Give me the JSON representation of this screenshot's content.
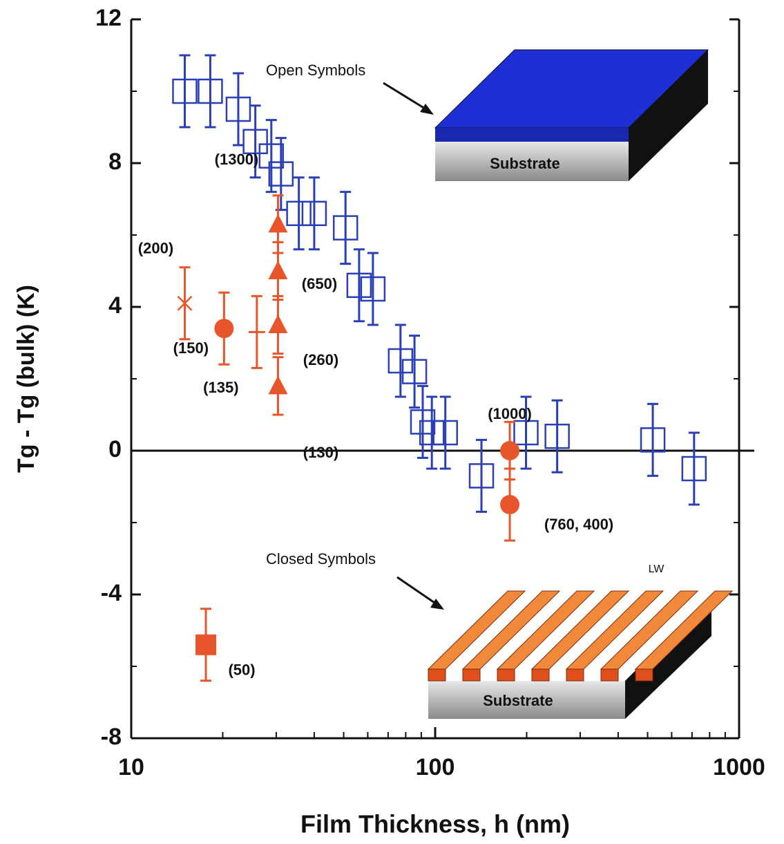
{
  "chart_data": {
    "type": "scatter",
    "xlabel": "Film Thickness, h (nm)",
    "ylabel": "Tg - Tg (bulk) (K)",
    "xlim": [
      10,
      1000
    ],
    "xticks": [
      10,
      100,
      1000
    ],
    "xscale": "log",
    "ylim": [
      -8,
      12
    ],
    "yticks": [
      -8,
      -4,
      0,
      4,
      8,
      12
    ],
    "reference_line": 0,
    "annotations": [
      "Open Symbols",
      "Closed Symbols"
    ],
    "inset_labels": [
      "Substrate",
      "Substrate",
      "LW"
    ],
    "series": [
      {
        "name": "Open Symbols",
        "color": "#2b3fb5",
        "marker": "open-square",
        "x": [
          15.0,
          18.2,
          22.5,
          25.6,
          28.9,
          31.1,
          35.6,
          40.0,
          50.7,
          56.2,
          62.4,
          76.9,
          85.5,
          91,
          97.5,
          108,
          142,
          199,
          252,
          520,
          711
        ],
        "values": [
          10.0,
          10.0,
          9.5,
          8.6,
          8.2,
          7.7,
          6.6,
          6.6,
          6.2,
          4.6,
          4.5,
          2.5,
          2.2,
          0.8,
          0.5,
          0.5,
          -0.7,
          0.5,
          0.4,
          0.3,
          -0.5
        ],
        "error": [
          1.0,
          1.0,
          1.0,
          1.0,
          1.0,
          1.0,
          1.0,
          1.0,
          1.0,
          1.0,
          1.0,
          1.0,
          1.0,
          1.0,
          1.0,
          1.0,
          1.0,
          1.0,
          1.0,
          1.0,
          1.0
        ]
      },
      {
        "name": "Closed Symbols",
        "color": "#e8552a",
        "markers": [
          "x",
          "circle",
          "dash",
          "triangle",
          "triangle",
          "triangle",
          "triangle",
          "circle",
          "circle",
          "square"
        ],
        "x": [
          15.0,
          20.2,
          25.9,
          30.4,
          30.4,
          30.4,
          30.4,
          176,
          176,
          17.6
        ],
        "values": [
          4.1,
          3.4,
          3.3,
          6.3,
          5.0,
          3.5,
          1.8,
          0.0,
          -1.5,
          -5.4
        ],
        "error": [
          1.0,
          1.0,
          1.0,
          0.8,
          0.8,
          0.8,
          0.8,
          0.8,
          1.0,
          1.0
        ],
        "point_labels": [
          "(200)",
          "(150)",
          "(135)",
          "(1300)",
          "(650)",
          "(260)",
          "(130)",
          "(1000)",
          "(760, 400)",
          "(50)"
        ]
      }
    ]
  }
}
